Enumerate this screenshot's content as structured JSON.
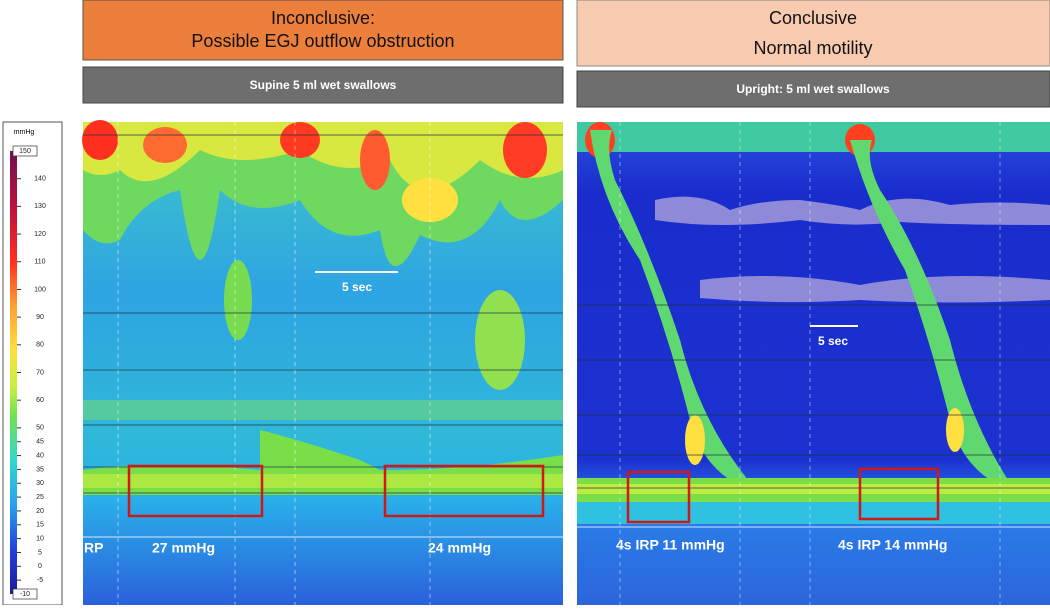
{
  "panels": [
    {
      "header": [
        "Inconclusive:",
        "Possible EGJ outflow obstruction"
      ],
      "subheader": "Supine 5 ml wet swallows",
      "scale_label": "5 sec",
      "annotations": [
        "RP",
        "27 mmHg",
        "24 mmHg"
      ]
    },
    {
      "header": [
        "Conclusive",
        "Normal motility"
      ],
      "subheader": "Upright: 5 ml wet swallows",
      "scale_label": "5 sec",
      "annotations": [
        "4s IRP 11 mmHg",
        "4s IRP 14 mmHg"
      ]
    }
  ],
  "colorbar": {
    "unit": "mmHg",
    "ticks": [
      -10,
      -5,
      0,
      5,
      10,
      15,
      20,
      25,
      30,
      35,
      40,
      45,
      50,
      60,
      70,
      80,
      90,
      100,
      110,
      120,
      130,
      140,
      150
    ]
  }
}
